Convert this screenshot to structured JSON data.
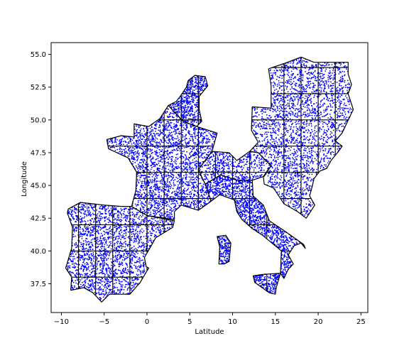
{
  "chart_data": {
    "type": "scatter",
    "title": "",
    "xlabel": "Latitude",
    "ylabel": "Longitude",
    "xlim": [
      -11.2,
      25.8
    ],
    "ylim": [
      35.3,
      55.9
    ],
    "xticks": [
      -10,
      -5,
      0,
      5,
      10,
      15,
      20,
      25
    ],
    "xtick_labels": [
      "−10",
      "−5",
      "0",
      "5",
      "10",
      "15",
      "20",
      "25"
    ],
    "yticks": [
      37.5,
      40.0,
      42.5,
      45.0,
      47.5,
      50.0,
      52.5,
      55.0
    ],
    "ytick_labels": [
      "37.5",
      "40.0",
      "42.5",
      "45.0",
      "47.5",
      "50.0",
      "52.5",
      "55.0"
    ],
    "grid": false,
    "legend": "none",
    "point_color": "#0000ff",
    "outline_color": "#000000",
    "series": [
      {
        "region": "Iberian Peninsula",
        "polygon": [
          [
            -9.2,
            43.2
          ],
          [
            -7.8,
            43.7
          ],
          [
            -5.0,
            43.5
          ],
          [
            -3.0,
            43.4
          ],
          [
            -1.8,
            43.4
          ],
          [
            0.0,
            42.7
          ],
          [
            3.2,
            42.3
          ],
          [
            3.0,
            41.8
          ],
          [
            1.0,
            41.0
          ],
          [
            0.5,
            40.4
          ],
          [
            -0.3,
            39.5
          ],
          [
            -0.1,
            38.8
          ],
          [
            0.2,
            38.7
          ],
          [
            -0.8,
            37.6
          ],
          [
            -2.0,
            36.7
          ],
          [
            -4.4,
            36.7
          ],
          [
            -5.3,
            36.1
          ],
          [
            -6.3,
            36.8
          ],
          [
            -7.4,
            37.2
          ],
          [
            -8.9,
            37.0
          ],
          [
            -8.8,
            38.0
          ],
          [
            -9.5,
            38.7
          ],
          [
            -8.8,
            40.2
          ],
          [
            -8.7,
            41.8
          ],
          [
            -9.3,
            42.9
          ]
        ],
        "grid_x": [
          -8,
          -6,
          -4,
          -2,
          0,
          2
        ],
        "grid_y": [
          38,
          40,
          42
        ],
        "n_points": 2200
      },
      {
        "region": "France",
        "polygon": [
          [
            -1.8,
            43.4
          ],
          [
            -1.3,
            44.6
          ],
          [
            -1.2,
            46.0
          ],
          [
            -2.2,
            47.1
          ],
          [
            -4.5,
            47.8
          ],
          [
            -4.7,
            48.5
          ],
          [
            -3.0,
            48.8
          ],
          [
            -1.5,
            48.7
          ],
          [
            -1.5,
            49.7
          ],
          [
            0.2,
            49.5
          ],
          [
            1.5,
            50.1
          ],
          [
            2.5,
            51.1
          ],
          [
            4.2,
            49.9
          ],
          [
            5.8,
            49.5
          ],
          [
            8.2,
            49.0
          ],
          [
            7.6,
            47.6
          ],
          [
            6.0,
            46.2
          ],
          [
            6.8,
            45.1
          ],
          [
            7.5,
            43.8
          ],
          [
            6.0,
            43.1
          ],
          [
            4.0,
            43.5
          ],
          [
            3.2,
            43.0
          ],
          [
            3.2,
            42.4
          ],
          [
            0.0,
            42.7
          ]
        ],
        "grid_x": [
          0,
          2,
          4,
          6
        ],
        "grid_y": [
          44,
          46,
          48,
          50
        ],
        "n_points": 2400
      },
      {
        "region": "Benelux and Netherlands",
        "polygon": [
          [
            2.5,
            51.1
          ],
          [
            3.4,
            51.4
          ],
          [
            4.0,
            51.9
          ],
          [
            4.6,
            52.5
          ],
          [
            4.8,
            53.0
          ],
          [
            5.6,
            53.4
          ],
          [
            6.8,
            53.3
          ],
          [
            7.1,
            52.6
          ],
          [
            6.1,
            51.8
          ],
          [
            6.1,
            50.8
          ],
          [
            6.4,
            49.9
          ],
          [
            5.8,
            49.5
          ],
          [
            4.2,
            49.9
          ]
        ],
        "grid_x": [
          4,
          6
        ],
        "grid_y": [
          50,
          52
        ],
        "n_points": 520
      },
      {
        "region": "Switzerland and Alps",
        "polygon": [
          [
            6.0,
            46.2
          ],
          [
            7.6,
            47.6
          ],
          [
            9.6,
            47.5
          ],
          [
            10.5,
            46.9
          ],
          [
            12.0,
            47.6
          ],
          [
            13.0,
            47.5
          ],
          [
            14.5,
            46.5
          ],
          [
            13.7,
            45.7
          ],
          [
            12.3,
            45.4
          ],
          [
            10.5,
            45.4
          ],
          [
            8.6,
            45.8
          ],
          [
            6.8,
            45.1
          ]
        ],
        "grid_x": [
          8,
          10,
          12
        ],
        "grid_y": [
          46
        ],
        "n_points": 480
      },
      {
        "region": "Italy",
        "polygon": [
          [
            6.8,
            45.1
          ],
          [
            7.5,
            43.8
          ],
          [
            8.5,
            44.3
          ],
          [
            10.2,
            43.9
          ],
          [
            10.5,
            43.0
          ],
          [
            11.1,
            42.4
          ],
          [
            12.3,
            41.7
          ],
          [
            13.5,
            41.2
          ],
          [
            14.6,
            40.6
          ],
          [
            15.7,
            40.0
          ],
          [
            15.6,
            38.3
          ],
          [
            16.0,
            37.9
          ],
          [
            16.5,
            38.6
          ],
          [
            17.1,
            39.0
          ],
          [
            16.5,
            39.7
          ],
          [
            17.2,
            40.4
          ],
          [
            18.0,
            40.6
          ],
          [
            18.5,
            40.2
          ],
          [
            18.3,
            40.5
          ],
          [
            17.0,
            41.1
          ],
          [
            15.9,
            41.6
          ],
          [
            14.3,
            42.3
          ],
          [
            13.6,
            43.5
          ],
          [
            12.4,
            44.2
          ],
          [
            12.3,
            45.4
          ],
          [
            10.5,
            45.4
          ],
          [
            8.6,
            45.8
          ]
        ],
        "grid_x": [
          10,
          12,
          14
        ],
        "grid_y": [
          40,
          42,
          44
        ],
        "n_points": 1350
      },
      {
        "region": "Sardinia",
        "polygon": [
          [
            8.2,
            41.1
          ],
          [
            9.2,
            41.2
          ],
          [
            9.8,
            40.6
          ],
          [
            9.6,
            39.2
          ],
          [
            9.0,
            39.0
          ],
          [
            8.4,
            39.0
          ],
          [
            8.5,
            40.3
          ]
        ],
        "grid_x": [],
        "grid_y": [],
        "n_points": 180
      },
      {
        "region": "Sicily",
        "polygon": [
          [
            12.4,
            38.1
          ],
          [
            13.4,
            38.2
          ],
          [
            15.6,
            38.3
          ],
          [
            15.1,
            37.2
          ],
          [
            15.0,
            36.7
          ],
          [
            14.3,
            36.8
          ],
          [
            12.6,
            37.6
          ]
        ],
        "grid_x": [
          14
        ],
        "grid_y": [],
        "n_points": 210
      },
      {
        "region": "Central Europe and Balkans",
        "polygon": [
          [
            12.3,
            51.0
          ],
          [
            14.5,
            50.9
          ],
          [
            14.5,
            52.6
          ],
          [
            14.2,
            53.9
          ],
          [
            16.0,
            54.3
          ],
          [
            18.0,
            54.8
          ],
          [
            19.5,
            54.4
          ],
          [
            23.5,
            54.4
          ],
          [
            23.5,
            53.5
          ],
          [
            23.9,
            52.7
          ],
          [
            23.5,
            52.0
          ],
          [
            24.1,
            50.8
          ],
          [
            22.8,
            49.0
          ],
          [
            22.0,
            48.4
          ],
          [
            22.8,
            48.0
          ],
          [
            22.5,
            47.7
          ],
          [
            21.5,
            46.9
          ],
          [
            21.0,
            46.3
          ],
          [
            20.2,
            46.1
          ],
          [
            19.5,
            45.5
          ],
          [
            19.3,
            44.9
          ],
          [
            19.0,
            44.2
          ],
          [
            19.6,
            43.5
          ],
          [
            19.1,
            43.0
          ],
          [
            18.6,
            42.5
          ],
          [
            17.6,
            43.0
          ],
          [
            16.0,
            43.6
          ],
          [
            14.8,
            44.8
          ],
          [
            13.7,
            45.1
          ],
          [
            13.6,
            45.7
          ],
          [
            14.5,
            46.5
          ],
          [
            13.0,
            47.5
          ],
          [
            12.0,
            47.6
          ],
          [
            13.0,
            48.3
          ],
          [
            12.2,
            49.2
          ],
          [
            12.3,
            51.0
          ]
        ],
        "grid_x": [
          16,
          18,
          20,
          22
        ],
        "grid_y": [
          44,
          46,
          48,
          50,
          52,
          54
        ],
        "n_points": 2600
      }
    ]
  }
}
